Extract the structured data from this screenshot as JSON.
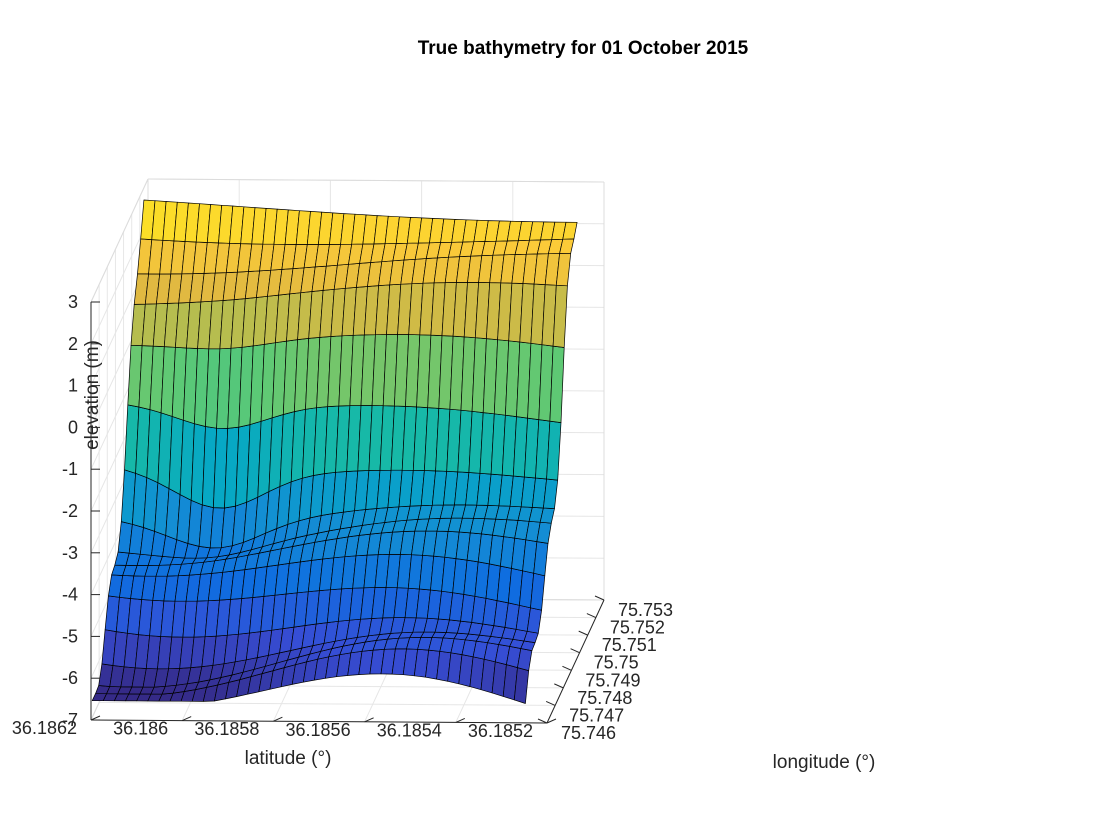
{
  "chart_data": {
    "type": "surface",
    "title": "True bathymetry for 01 October 2015",
    "xlabel": "latitude (°)",
    "ylabel": "longitude (°)",
    "zlabel": "elevation (m)",
    "xlim": [
      36.1852,
      36.1862
    ],
    "ylim": [
      75.746,
      75.753
    ],
    "zlim": [
      -7,
      3
    ],
    "x_ticks": [
      "36.1852",
      "36.1854",
      "36.1856",
      "36.1858",
      "36.186",
      "36.1862"
    ],
    "y_ticks": [
      "75.746",
      "75.747",
      "75.748",
      "75.749",
      "75.75",
      "75.751",
      "75.752",
      "75.753"
    ],
    "z_ticks": [
      "-7",
      "-6",
      "-5",
      "-4",
      "-3",
      "-2",
      "-1",
      "0",
      "1",
      "2",
      "3"
    ],
    "grid": true,
    "colormap": "parula",
    "colors": {
      "edge": "#000000",
      "grid": "#e6e6e6",
      "axis": "#262626"
    },
    "surface": {
      "lat_range": [
        36.18525,
        36.1862
      ],
      "lon_range": [
        75.74615,
        75.7525
      ],
      "elevation_range": [
        -6.6,
        2.9
      ],
      "lat_samples": 40,
      "lon_samples": 17,
      "description": "Elevation ramps from about -6.6 m at the low-longitude edge to about 2.9 m at the high-longitude edge, with a steep rise near longitude 75.7505"
    }
  }
}
